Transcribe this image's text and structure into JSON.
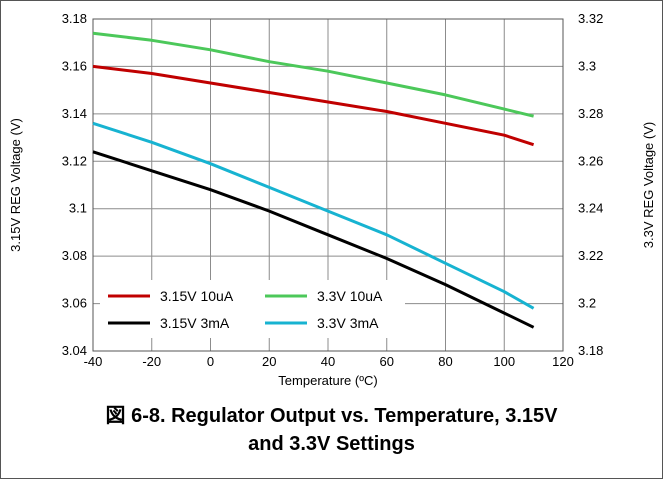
{
  "chart_data": {
    "type": "line",
    "caption_line1": "図 6-8. Regulator Output vs. Temperature, 3.15V",
    "caption_line2": "and 3.3V Settings",
    "xlabel": "Temperature (ºC)",
    "ylabel_left": "3.15V REG Voltage (V)",
    "ylabel_right": "3.3V REG Voltage (V)",
    "xlim": [
      -40,
      120
    ],
    "ylim_left": [
      3.04,
      3.18
    ],
    "ylim_right": [
      3.18,
      3.32
    ],
    "x_ticks": [
      "-40",
      "-20",
      "0",
      "20",
      "40",
      "60",
      "80",
      "100",
      "120"
    ],
    "y_left_ticks": [
      "3.04",
      "3.06",
      "3.08",
      "3.1",
      "3.12",
      "3.14",
      "3.16",
      "3.18"
    ],
    "y_right_ticks": [
      "3.18",
      "3.2",
      "3.22",
      "3.24",
      "3.26",
      "3.28",
      "3.3",
      "3.32"
    ],
    "grid": true,
    "legend_position": "bottom-left",
    "series": [
      {
        "name": "3.15V 10uA",
        "axis": "left",
        "color": "#c00000",
        "x": [
          -40,
          -20,
          0,
          20,
          40,
          60,
          80,
          100,
          110
        ],
        "y": [
          3.16,
          3.157,
          3.153,
          3.149,
          3.145,
          3.141,
          3.136,
          3.131,
          3.127
        ]
      },
      {
        "name": "3.3V 10uA",
        "axis": "right",
        "color": "#4cc85a",
        "x": [
          -40,
          -20,
          0,
          20,
          40,
          60,
          80,
          100,
          110
        ],
        "y": [
          3.314,
          3.311,
          3.307,
          3.302,
          3.298,
          3.293,
          3.288,
          3.282,
          3.279
        ]
      },
      {
        "name": "3.15V 3mA",
        "axis": "left",
        "color": "#000000",
        "x": [
          -40,
          -20,
          0,
          20,
          40,
          60,
          80,
          100,
          110
        ],
        "y": [
          3.124,
          3.116,
          3.108,
          3.099,
          3.089,
          3.079,
          3.068,
          3.056,
          3.05
        ]
      },
      {
        "name": "3.3V 3mA",
        "axis": "right",
        "color": "#17b3d1",
        "x": [
          -40,
          -20,
          0,
          20,
          40,
          60,
          80,
          100,
          110
        ],
        "y": [
          3.276,
          3.268,
          3.259,
          3.249,
          3.239,
          3.229,
          3.217,
          3.205,
          3.198
        ]
      }
    ]
  }
}
